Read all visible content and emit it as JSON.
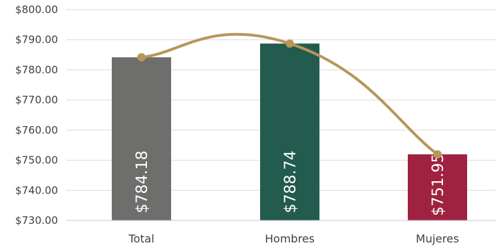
{
  "chart_data": {
    "type": "bar",
    "categories": [
      "Total",
      "Hombres",
      "Mujeres"
    ],
    "values": [
      784.18,
      788.74,
      751.95
    ],
    "data_labels": [
      "$784.18",
      "$788.74",
      "$751.95"
    ],
    "y_tick_labels": [
      "$730.00",
      "$740.00",
      "$750.00",
      "$760.00",
      "$770.00",
      "$780.00",
      "$790.00",
      "$800.00"
    ],
    "y_ticks": [
      730,
      740,
      750,
      760,
      770,
      780,
      790,
      800
    ],
    "ylim": [
      730,
      800
    ],
    "grid": true,
    "overlay_line": {
      "type": "smooth-line",
      "values": [
        784.18,
        788.74,
        751.95
      ],
      "color": "#B8965A"
    },
    "bar_colors": [
      "#6E6E6C",
      "#235B4E",
      "#9F2241"
    ]
  }
}
